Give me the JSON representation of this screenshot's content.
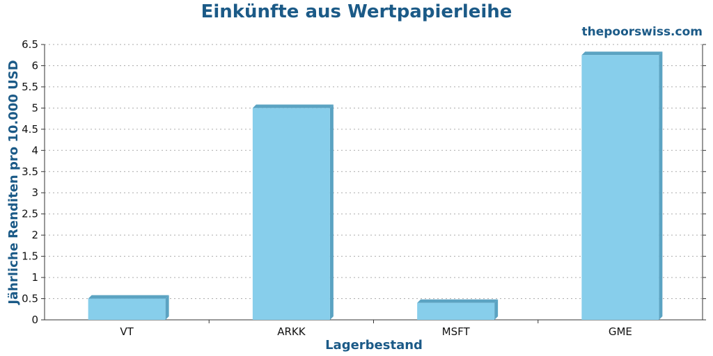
{
  "chart_data": {
    "type": "bar",
    "title": "Einkünfte aus Wertpapierleihe",
    "watermark": "thepoorswiss.com",
    "xlabel": "Lagerbestand",
    "ylabel": "Jährliche Renditen pro 10.000 USD",
    "categories": [
      "VT",
      "ARKK",
      "MSFT",
      "GME"
    ],
    "values": [
      0.5,
      5.0,
      0.4,
      6.25
    ],
    "ylim": [
      0,
      6.5
    ],
    "yticks": [
      "0",
      "0.5",
      "1",
      "1.5",
      "2",
      "2.5",
      "3",
      "3.5",
      "4",
      "4.5",
      "5",
      "5.5",
      "6",
      "6.5"
    ],
    "grid": true,
    "colors": {
      "bar_face": "#87CEEB",
      "bar_side": "#5BA3C2",
      "accent": "#1B5A87",
      "grid": "#aaaaaa",
      "axis": "#333333"
    }
  }
}
